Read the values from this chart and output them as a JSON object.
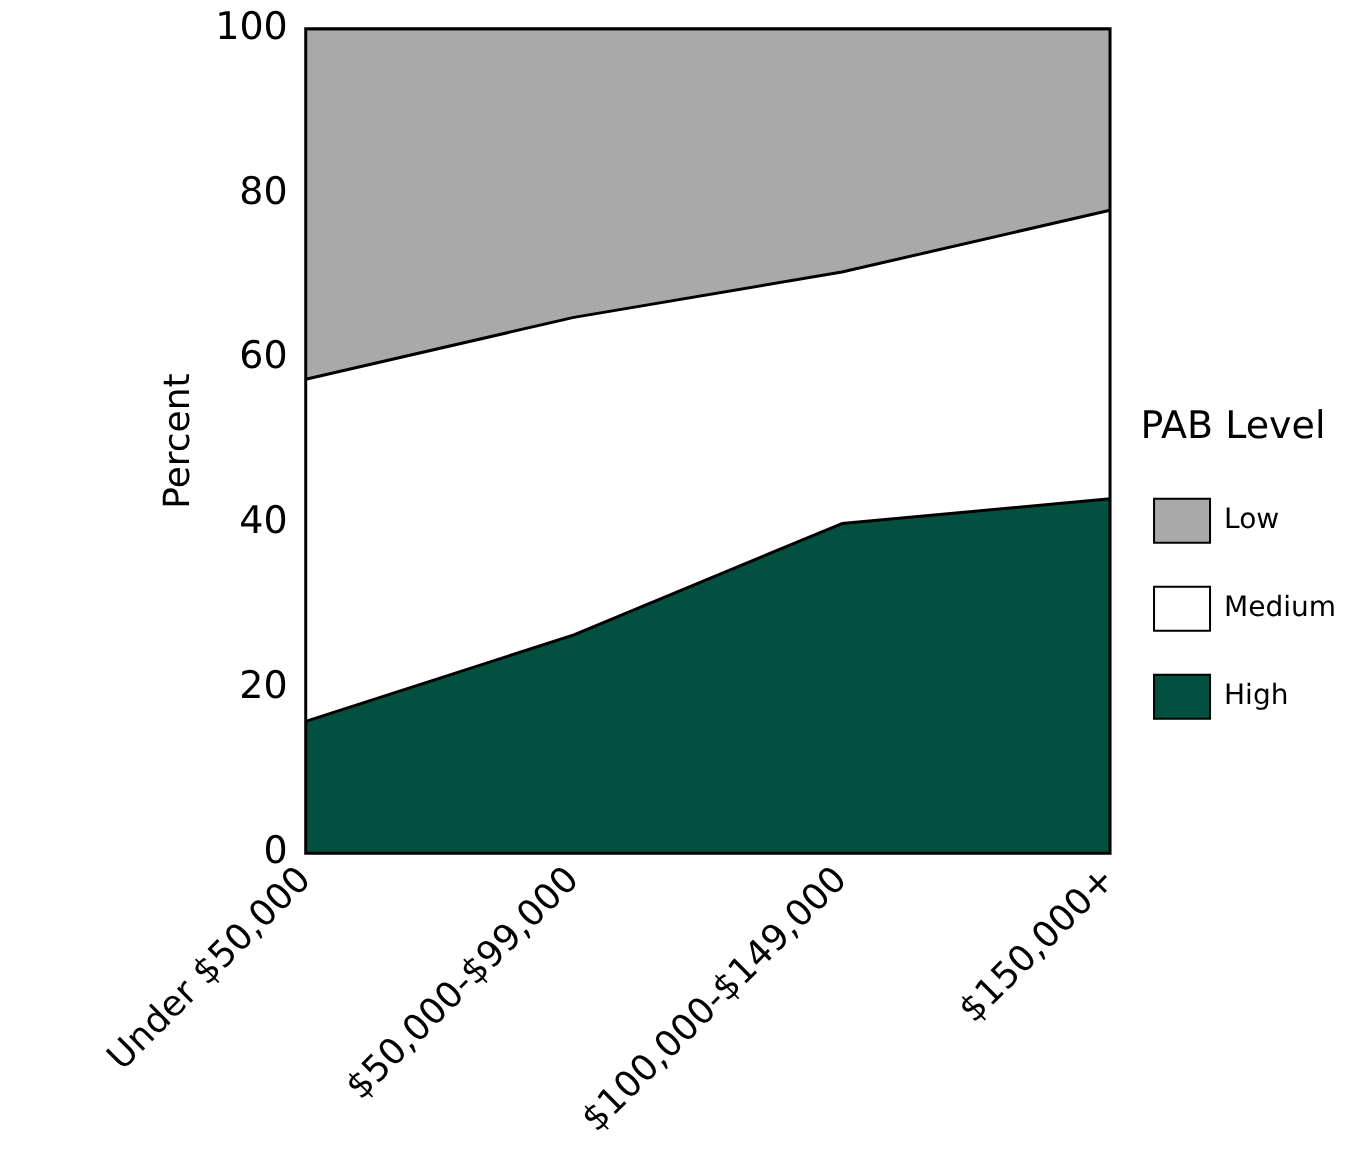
{
  "chart_data": {
    "type": "area",
    "stacked": true,
    "ylabel": "Percent",
    "legend": "right",
    "legend_title": "PAB Level",
    "grid": false,
    "categories": [
      "Under $50,000",
      "$50,000-$99,000",
      "$100,000-$149,000",
      "$150,000+"
    ],
    "series": [
      {
        "name": "High",
        "color": "#02503f",
        "values": [
          16,
          26.5,
          40,
          43
        ]
      },
      {
        "name": "Medium",
        "color": "#ffffff",
        "values": [
          41.5,
          38.5,
          30.5,
          35
        ]
      },
      {
        "name": "Low",
        "color": "#a9a9a9",
        "values": [
          42.5,
          35,
          29.5,
          22
        ]
      }
    ],
    "ylim": [
      0,
      100
    ],
    "yticks": [
      0,
      20,
      40,
      60,
      80,
      100
    ]
  }
}
